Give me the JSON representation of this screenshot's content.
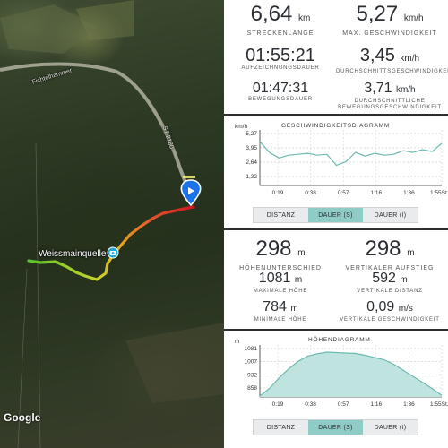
{
  "map": {
    "road_label": "Fichtelhammer",
    "route_label": "ST 2180",
    "spring_label": "Weissmainquelle",
    "attribution": "Google",
    "route_color_start": "#55c12a",
    "route_color_end": "#d0161e",
    "marker_icon": "play-location-pin-icon",
    "photo_icon": "camera-icon"
  },
  "stats_top": {
    "distance": {
      "value": "6,64",
      "unit": "km",
      "label": "STRECKENLÄNGE"
    },
    "max_speed": {
      "value": "5,27",
      "unit": "km/h",
      "label": "MAX. GESCHWINDIGKEIT"
    },
    "recording_time": {
      "value": "01:55:21",
      "label": "AUFZEICHNUNGSDAUER"
    },
    "avg_speed": {
      "value": "3,45",
      "unit": "km/h",
      "label": "DURCHSCHNITTSGESCHWINDIGKEIT"
    },
    "moving_time": {
      "value": "01:47:31",
      "label": "BEWEGUNGSDAUER"
    },
    "avg_moving_speed": {
      "value": "3,71",
      "unit": "km/h",
      "label1": "DURCHSCHNITTLICHE",
      "label2": "BEWEGUNGSGESCHWINDIGKEIT"
    }
  },
  "speed_chart": {
    "title": "GESCHWINDIGKEITSDIAGRAMM",
    "unit": "km/h",
    "y_ticks": [
      "5,27",
      "3,95",
      "2,64",
      "1,32"
    ],
    "x_ticks": [
      "0:19",
      "0:38",
      "0:57",
      "1:16",
      "1:36",
      "1:55St.M"
    ]
  },
  "tabs1": [
    "DISTANZ",
    "DAUER (S)",
    "DAUER (I)"
  ],
  "stats_alt": {
    "elevation_diff": {
      "value": "298",
      "unit": "m",
      "label": "HÖHENUNTERSCHIED"
    },
    "vertical_ascent": {
      "value": "298",
      "unit": "m",
      "label": "VERTIKALER AUFSTIEG"
    },
    "max_height": {
      "value": "1081",
      "unit": "m",
      "label": "MAXIMALE HÖHE"
    },
    "vertical_distance": {
      "value": "592",
      "unit": "m",
      "label": "VERTIKALE DISTANZ"
    },
    "min_height": {
      "value": "784",
      "unit": "m",
      "label": "MINIMALE HÖHE"
    },
    "vertical_speed": {
      "value": "0,09",
      "unit": "m/s",
      "label": "VERTIKALE GESCHWINDIGKEIT"
    }
  },
  "elevation_chart": {
    "title": "HÖHENDIAGRAMM",
    "unit": "m",
    "y_ticks": [
      "1081",
      "1007",
      "932",
      "858"
    ],
    "x_ticks": [
      "0:19",
      "0:38",
      "0:57",
      "1:16",
      "1:36",
      "1:55St.M"
    ]
  },
  "tabs2": [
    "DISTANZ",
    "DAUER (S)",
    "DAUER (I)"
  ],
  "active_tab": "DAUER (S)",
  "chart_data": [
    {
      "type": "line",
      "title": "GESCHWINDIGKEITSDIAGRAMM",
      "ylabel": "km/h",
      "ylim": [
        0,
        5.27
      ],
      "x": [
        0,
        0.1,
        0.2,
        0.3,
        0.4,
        0.5,
        0.6,
        0.7,
        0.8,
        0.9,
        1.0,
        1.1,
        1.2,
        1.3,
        1.4,
        1.5,
        1.6,
        1.7,
        1.8,
        1.9
      ],
      "series": [
        {
          "values": [
            4.8,
            3.6,
            3.0,
            3.3,
            3.4,
            3.5,
            3.3,
            3.4,
            2.2,
            2.6,
            3.6,
            3.2,
            3.5,
            3.3,
            3.4,
            3.8,
            3.6,
            3.9,
            3.7,
            4.6
          ]
        }
      ],
      "xlabel": "St.M",
      "x_ticks": [
        "0:19",
        "0:38",
        "0:57",
        "1:16",
        "1:36",
        "1:55"
      ]
    },
    {
      "type": "area",
      "title": "HÖHENDIAGRAMM",
      "ylabel": "m",
      "ylim": [
        784,
        1081
      ],
      "x": [
        0,
        0.1,
        0.2,
        0.3,
        0.4,
        0.5,
        0.6,
        0.7,
        0.8,
        0.9,
        1.0,
        1.1,
        1.2,
        1.3,
        1.4,
        1.5,
        1.6,
        1.7,
        1.8,
        1.9
      ],
      "series": [
        {
          "values": [
            790,
            840,
            910,
            970,
            1020,
            1055,
            1070,
            1081,
            1078,
            1075,
            1072,
            1060,
            1045,
            1030,
            1000,
            960,
            920,
            880,
            840,
            795
          ]
        }
      ],
      "xlabel": "St.M",
      "x_ticks": [
        "0:19",
        "0:38",
        "0:57",
        "1:16",
        "1:36",
        "1:55"
      ]
    }
  ]
}
